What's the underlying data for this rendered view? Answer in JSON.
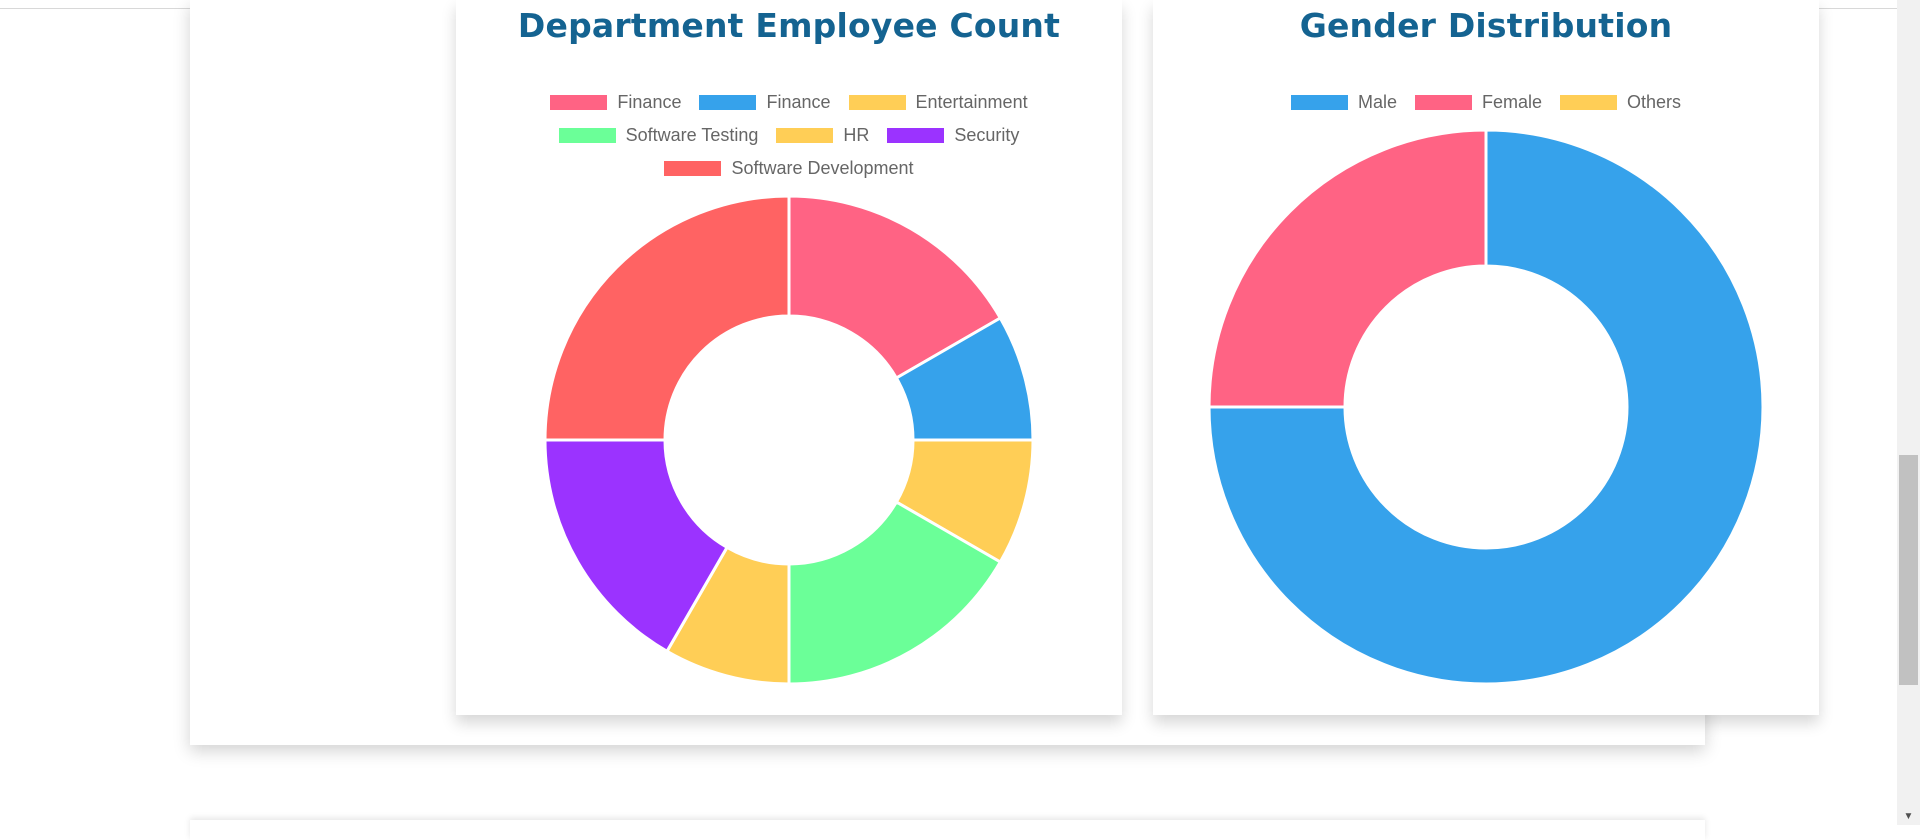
{
  "charts": {
    "department": {
      "title": "Department Employee Count"
    },
    "gender": {
      "title": "Gender Distribution"
    }
  },
  "chart_data": [
    {
      "type": "doughnut",
      "title": "Department Employee Count",
      "legend_position": "top",
      "categories": [
        "Finance",
        "Finance",
        "Entertainment",
        "Software Testing",
        "HR",
        "Security",
        "Software Development"
      ],
      "values": [
        2,
        1,
        1,
        2,
        1,
        2,
        3
      ],
      "colors": [
        "#ff6384",
        "#36a2eb",
        "#ffce56",
        "#6bff98",
        "#ffce56",
        "#9b33ff",
        "#ff6363"
      ]
    },
    {
      "type": "doughnut",
      "title": "Gender Distribution",
      "legend_position": "top",
      "categories": [
        "Male",
        "Female",
        "Others"
      ],
      "values": [
        3,
        1,
        0
      ],
      "colors": [
        "#36a2eb",
        "#ff6384",
        "#ffce56"
      ]
    }
  ]
}
